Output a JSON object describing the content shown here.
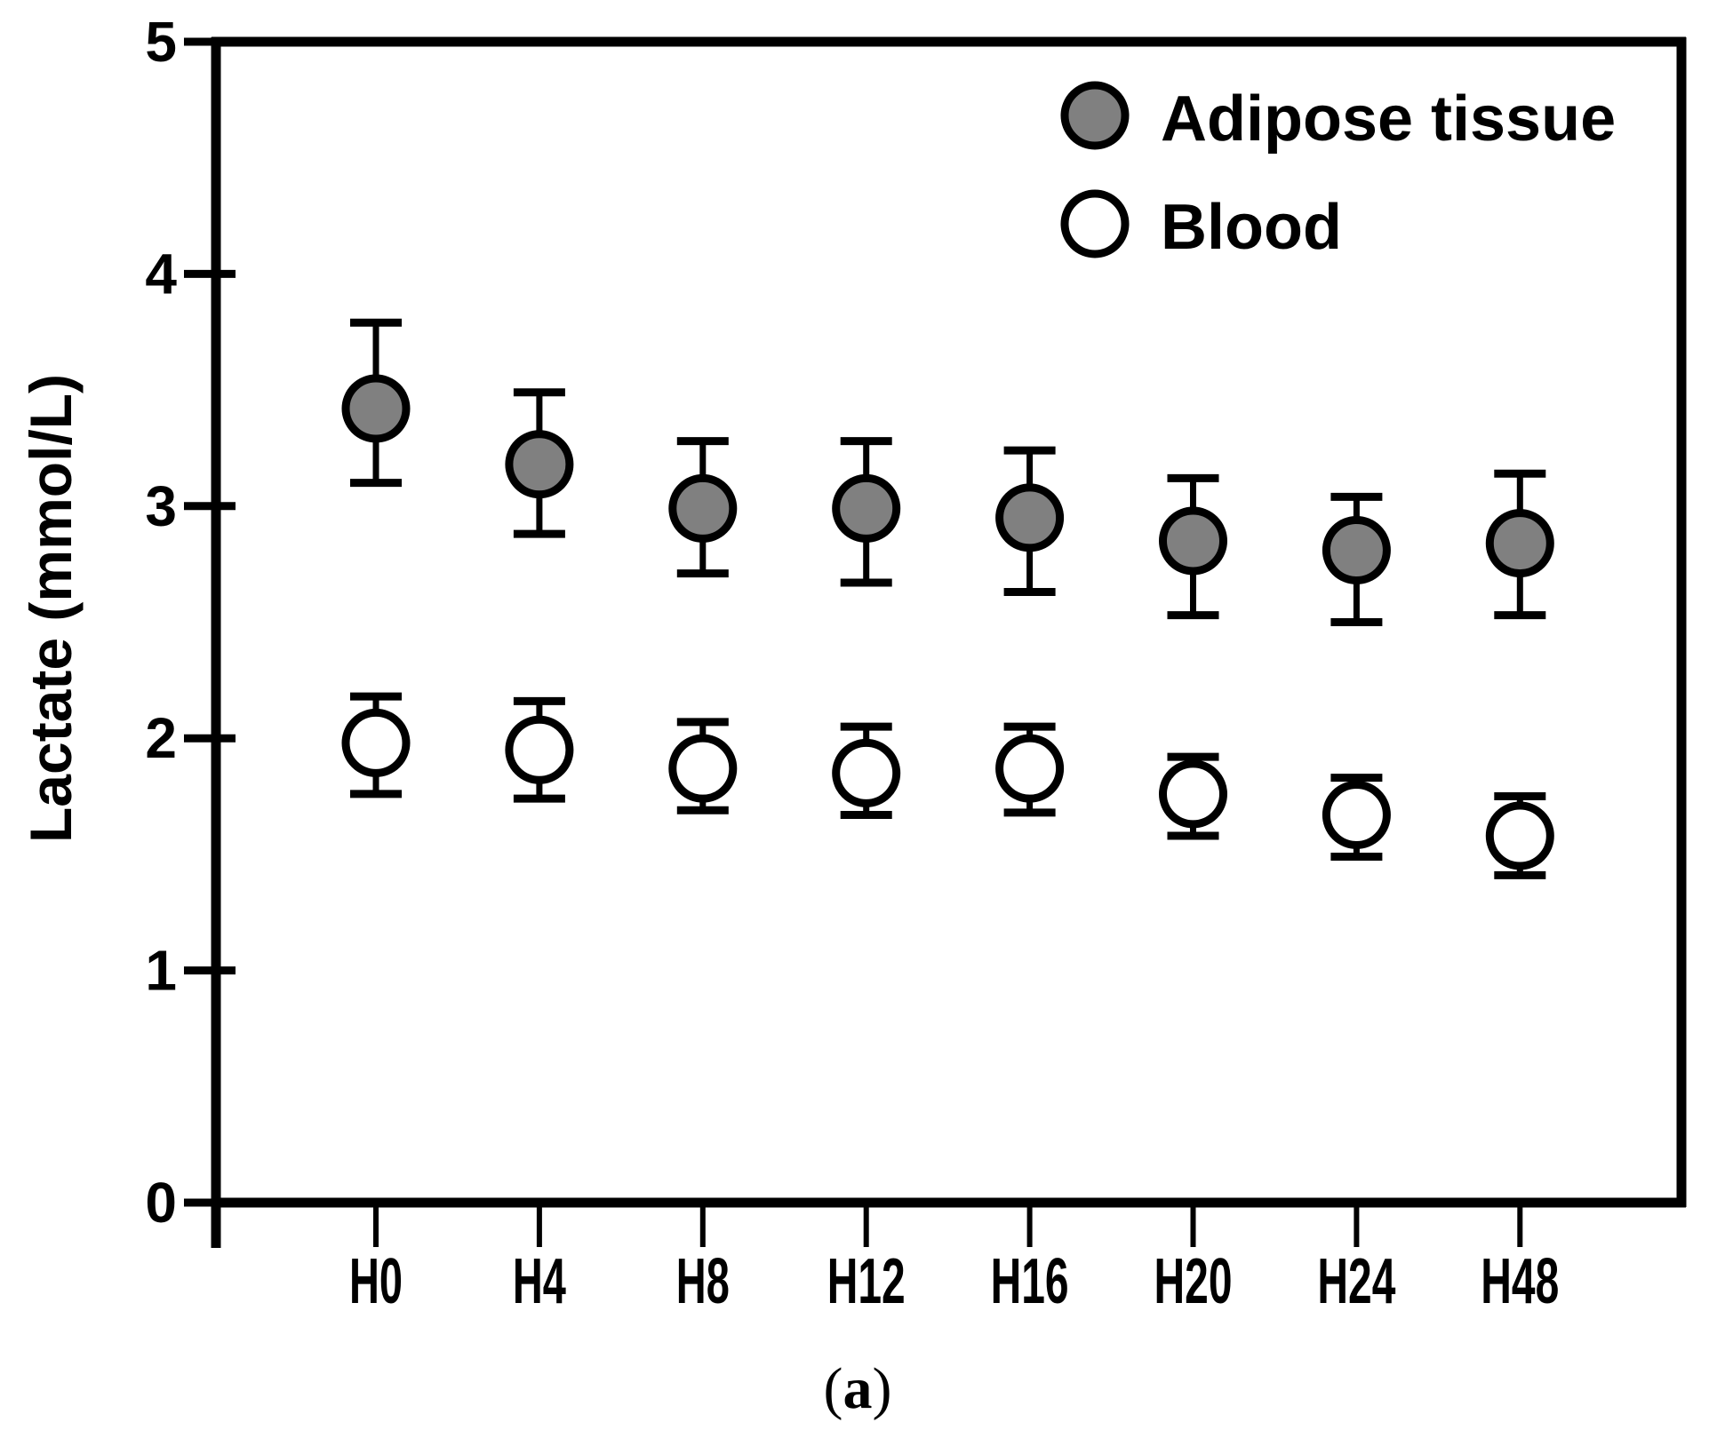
{
  "figure": {
    "caption_open": "(",
    "caption_letter": "a",
    "caption_close": ")"
  },
  "chart_data": {
    "type": "scatter",
    "title": "",
    "xlabel": "",
    "ylabel": "Lactate (mmol/L)",
    "categories": [
      "H0",
      "H4",
      "H8",
      "H12",
      "H16",
      "H20",
      "H24",
      "H48"
    ],
    "ylim": [
      0,
      5
    ],
    "yticks": [
      0,
      1,
      2,
      3,
      4,
      5
    ],
    "grid": false,
    "legend_position": "top-right",
    "error_bars": true,
    "series": [
      {
        "name": "Adipose tissue",
        "marker": "filled-circle",
        "fill": "#808080",
        "stroke": "#000000",
        "values": [
          3.42,
          3.18,
          2.99,
          2.99,
          2.95,
          2.85,
          2.81,
          2.84
        ],
        "upper": [
          3.79,
          3.49,
          3.28,
          3.28,
          3.24,
          3.12,
          3.04,
          3.14
        ],
        "lower": [
          3.1,
          2.88,
          2.71,
          2.67,
          2.63,
          2.53,
          2.5,
          2.53
        ]
      },
      {
        "name": "Blood",
        "marker": "open-circle",
        "fill": "#ffffff",
        "stroke": "#000000",
        "values": [
          1.98,
          1.95,
          1.87,
          1.85,
          1.87,
          1.76,
          1.67,
          1.58
        ],
        "upper": [
          2.18,
          2.16,
          2.07,
          2.05,
          2.05,
          1.92,
          1.83,
          1.75
        ],
        "lower": [
          1.76,
          1.74,
          1.69,
          1.67,
          1.68,
          1.58,
          1.49,
          1.41
        ]
      }
    ]
  }
}
